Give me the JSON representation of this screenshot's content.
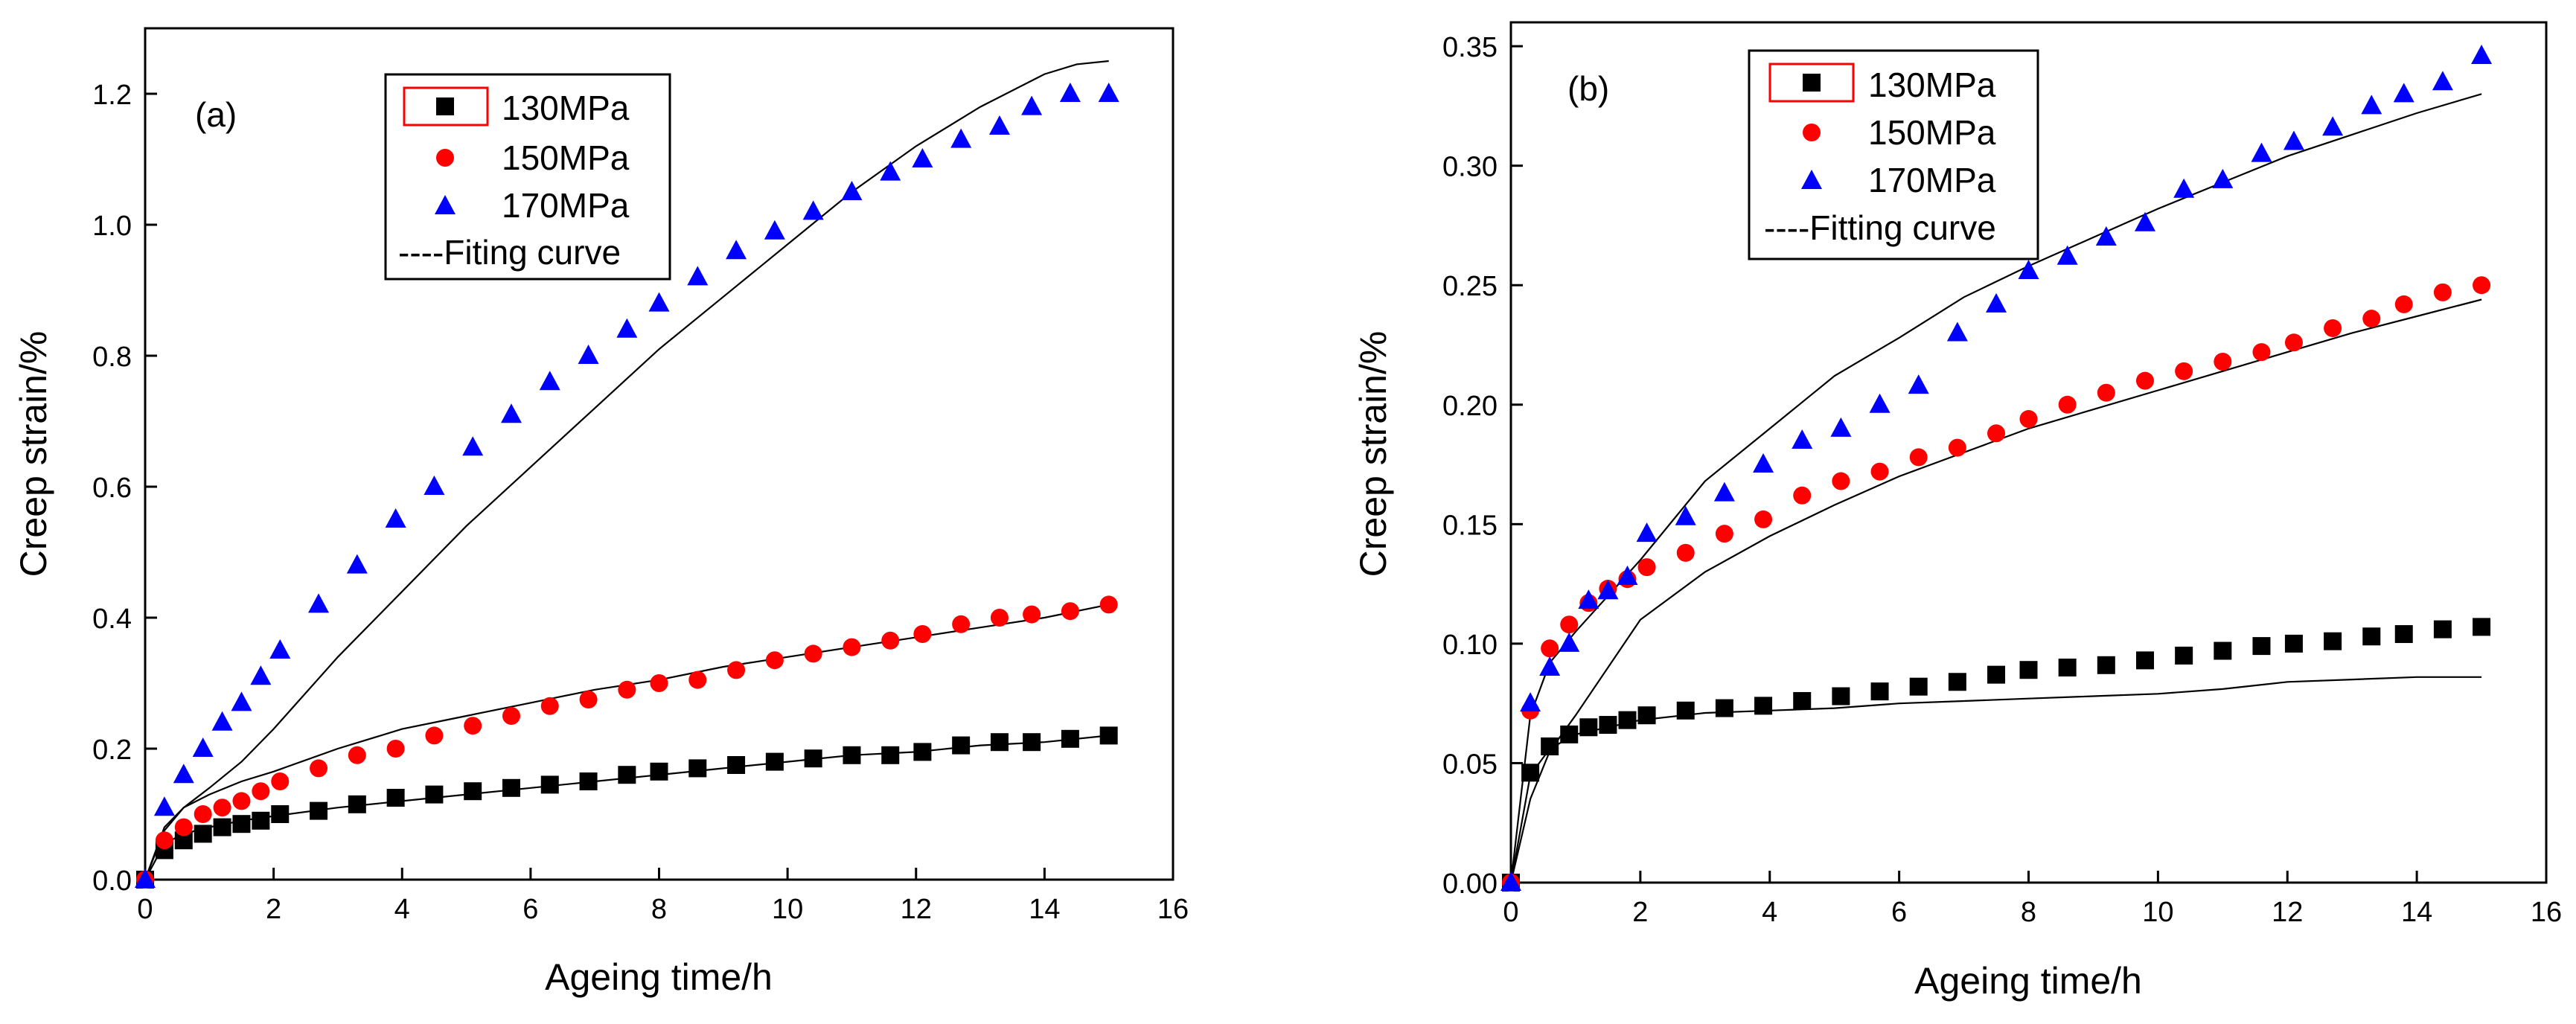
{
  "chart_data": [
    {
      "type": "scatter",
      "panel_label": "(a)",
      "xlabel": "Ageing time/h",
      "ylabel": "Creep strain/%",
      "xlim": [
        0,
        16
      ],
      "ylim": [
        0,
        1.3
      ],
      "xticks": [
        0,
        2,
        4,
        6,
        8,
        10,
        12,
        14,
        16
      ],
      "yticks": [
        0.0,
        0.2,
        0.4,
        0.6,
        0.8,
        1.0,
        1.2
      ],
      "xtick_labels": [
        "0",
        "2",
        "4",
        "6",
        "8",
        "10",
        "12",
        "14",
        "16"
      ],
      "ytick_labels": [
        "0.0",
        "0.2",
        "0.4",
        "0.6",
        "0.8",
        "1.0",
        "1.2"
      ],
      "legend_position": "top-center",
      "series": [
        {
          "name": "130MPa",
          "marker": "square",
          "color": "#000000",
          "x": [
            0,
            0.3,
            0.6,
            0.9,
            1.2,
            1.5,
            1.8,
            2.1,
            2.7,
            3.3,
            3.9,
            4.5,
            5.1,
            5.7,
            6.3,
            6.9,
            7.5,
            8.0,
            8.6,
            9.2,
            9.8,
            10.4,
            11.0,
            11.6,
            12.1,
            12.7,
            13.3,
            13.8,
            14.4,
            15.0
          ],
          "y": [
            0,
            0.045,
            0.06,
            0.07,
            0.08,
            0.085,
            0.09,
            0.1,
            0.105,
            0.115,
            0.125,
            0.13,
            0.135,
            0.14,
            0.145,
            0.15,
            0.16,
            0.165,
            0.17,
            0.175,
            0.18,
            0.185,
            0.19,
            0.19,
            0.195,
            0.205,
            0.21,
            0.21,
            0.215,
            0.22
          ]
        },
        {
          "name": "150MPa",
          "marker": "circle",
          "color": "#ff0000",
          "x": [
            0,
            0.3,
            0.6,
            0.9,
            1.2,
            1.5,
            1.8,
            2.1,
            2.7,
            3.3,
            3.9,
            4.5,
            5.1,
            5.7,
            6.3,
            6.9,
            7.5,
            8.0,
            8.6,
            9.2,
            9.8,
            10.4,
            11.0,
            11.6,
            12.1,
            12.7,
            13.3,
            13.8,
            14.4,
            15.0
          ],
          "y": [
            0,
            0.06,
            0.08,
            0.1,
            0.11,
            0.12,
            0.135,
            0.15,
            0.17,
            0.19,
            0.2,
            0.22,
            0.235,
            0.25,
            0.265,
            0.275,
            0.29,
            0.3,
            0.305,
            0.32,
            0.335,
            0.345,
            0.355,
            0.365,
            0.375,
            0.39,
            0.4,
            0.405,
            0.41,
            0.42
          ]
        },
        {
          "name": "170MPa",
          "marker": "triangle",
          "color": "#0000ff",
          "x": [
            0,
            0.3,
            0.6,
            0.9,
            1.2,
            1.5,
            1.8,
            2.1,
            2.7,
            3.3,
            3.9,
            4.5,
            5.1,
            5.7,
            6.3,
            6.9,
            7.5,
            8.0,
            8.6,
            9.2,
            9.8,
            10.4,
            11.0,
            11.6,
            12.1,
            12.7,
            13.3,
            13.8,
            14.4,
            15.0
          ],
          "y": [
            0,
            0.11,
            0.16,
            0.2,
            0.24,
            0.27,
            0.31,
            0.35,
            0.42,
            0.48,
            0.55,
            0.6,
            0.66,
            0.71,
            0.76,
            0.8,
            0.84,
            0.88,
            0.92,
            0.96,
            0.99,
            1.02,
            1.05,
            1.08,
            1.1,
            1.13,
            1.15,
            1.18,
            1.2,
            1.2
          ]
        },
        {
          "name": "----Fiting curve",
          "marker": "line",
          "color": "#000000",
          "curves": [
            {
              "x": [
                0,
                0.3,
                0.6,
                1,
                1.5,
                2,
                3,
                4,
                5,
                6,
                7,
                8,
                9,
                10,
                11,
                12,
                13,
                14,
                15
              ],
              "y": [
                0,
                0.055,
                0.07,
                0.08,
                0.09,
                0.097,
                0.11,
                0.12,
                0.13,
                0.14,
                0.15,
                0.16,
                0.17,
                0.18,
                0.19,
                0.195,
                0.205,
                0.21,
                0.22
              ]
            },
            {
              "x": [
                0,
                0.3,
                0.6,
                1,
                1.5,
                2,
                3,
                4,
                5,
                6,
                7,
                8,
                9,
                10,
                11,
                12,
                13,
                14,
                15
              ],
              "y": [
                0,
                0.075,
                0.11,
                0.13,
                0.15,
                0.165,
                0.2,
                0.23,
                0.25,
                0.27,
                0.29,
                0.305,
                0.325,
                0.34,
                0.355,
                0.37,
                0.385,
                0.4,
                0.42
              ]
            },
            {
              "x": [
                0,
                0.3,
                0.6,
                1,
                1.5,
                2,
                3,
                4,
                5,
                6,
                7,
                8,
                9,
                10,
                11,
                12,
                13,
                14,
                14.5,
                15
              ],
              "y": [
                0,
                0.08,
                0.11,
                0.14,
                0.18,
                0.23,
                0.34,
                0.44,
                0.54,
                0.63,
                0.72,
                0.81,
                0.89,
                0.97,
                1.05,
                1.12,
                1.18,
                1.23,
                1.245,
                1.25
              ]
            }
          ]
        }
      ]
    },
    {
      "type": "scatter",
      "panel_label": "(b)",
      "xlabel": "Ageing time/h",
      "ylabel": "Creep strain/%",
      "xlim": [
        0,
        16
      ],
      "ylim": [
        0,
        0.36
      ],
      "xticks": [
        0,
        2,
        4,
        6,
        8,
        10,
        12,
        14,
        16
      ],
      "yticks": [
        0.0,
        0.05,
        0.1,
        0.15,
        0.2,
        0.25,
        0.3,
        0.35
      ],
      "xtick_labels": [
        "0",
        "2",
        "4",
        "6",
        "8",
        "10",
        "12",
        "14",
        "16"
      ],
      "ytick_labels": [
        "0.00",
        "0.05",
        "0.10",
        "0.15",
        "0.20",
        "0.25",
        "0.30",
        "0.35"
      ],
      "legend_position": "top-left",
      "series": [
        {
          "name": "130MPa",
          "marker": "square",
          "color": "#000000",
          "x": [
            0,
            0.3,
            0.6,
            0.9,
            1.2,
            1.5,
            1.8,
            2.1,
            2.7,
            3.3,
            3.9,
            4.5,
            5.1,
            5.7,
            6.3,
            6.9,
            7.5,
            8.0,
            8.6,
            9.2,
            9.8,
            10.4,
            11.0,
            11.6,
            12.1,
            12.7,
            13.3,
            13.8,
            14.4,
            15.0
          ],
          "y": [
            0,
            0.046,
            0.057,
            0.062,
            0.065,
            0.066,
            0.068,
            0.07,
            0.072,
            0.073,
            0.074,
            0.076,
            0.078,
            0.08,
            0.082,
            0.084,
            0.087,
            0.089,
            0.09,
            0.091,
            0.093,
            0.095,
            0.097,
            0.099,
            0.1,
            0.101,
            0.103,
            0.104,
            0.106,
            0.107
          ]
        },
        {
          "name": "150MPa",
          "marker": "circle",
          "color": "#ff0000",
          "x": [
            0,
            0.3,
            0.6,
            0.9,
            1.2,
            1.5,
            1.8,
            2.1,
            2.7,
            3.3,
            3.9,
            4.5,
            5.1,
            5.7,
            6.3,
            6.9,
            7.5,
            8.0,
            8.6,
            9.2,
            9.8,
            10.4,
            11.0,
            11.6,
            12.1,
            12.7,
            13.3,
            13.8,
            14.4,
            15.0
          ],
          "y": [
            0,
            0.072,
            0.098,
            0.108,
            0.117,
            0.123,
            0.127,
            0.132,
            0.138,
            0.146,
            0.152,
            0.162,
            0.168,
            0.172,
            0.178,
            0.182,
            0.188,
            0.194,
            0.2,
            0.205,
            0.21,
            0.214,
            0.218,
            0.222,
            0.226,
            0.232,
            0.236,
            0.242,
            0.247,
            0.25
          ]
        },
        {
          "name": "170MPa",
          "marker": "triangle",
          "color": "#0000ff",
          "x": [
            0,
            0.3,
            0.6,
            0.9,
            1.2,
            1.5,
            1.8,
            2.1,
            2.7,
            3.3,
            3.9,
            4.5,
            5.1,
            5.7,
            6.3,
            6.9,
            7.5,
            8.0,
            8.6,
            9.2,
            9.8,
            10.4,
            11.0,
            11.6,
            12.1,
            12.7,
            13.3,
            13.8,
            14.4,
            15.0
          ],
          "y": [
            0,
            0.075,
            0.09,
            0.1,
            0.118,
            0.122,
            0.128,
            0.146,
            0.153,
            0.163,
            0.175,
            0.185,
            0.19,
            0.2,
            0.208,
            0.23,
            0.242,
            0.256,
            0.262,
            0.27,
            0.276,
            0.29,
            0.294,
            0.305,
            0.31,
            0.316,
            0.325,
            0.33,
            0.335,
            0.346
          ]
        },
        {
          "name": "----Fitting curve",
          "marker": "line",
          "color": "#000000",
          "curves": [
            {
              "x": [
                0,
                0.3,
                0.6,
                1,
                1.5,
                2,
                3,
                4,
                5,
                6,
                7,
                8,
                9,
                10,
                11,
                12,
                13,
                14,
                15
              ],
              "y": [
                0,
                0.045,
                0.056,
                0.062,
                0.065,
                0.068,
                0.071,
                0.072,
                0.073,
                0.075,
                0.076,
                0.077,
                0.078,
                0.079,
                0.081,
                0.084,
                0.085,
                0.086,
                0.086
              ]
            },
            {
              "x": [
                0,
                0.3,
                0.6,
                1,
                1.5,
                2,
                3,
                4,
                5,
                6,
                7,
                8,
                9,
                10,
                11,
                12,
                13,
                14,
                15
              ],
              "y": [
                0,
                0.035,
                0.055,
                0.07,
                0.09,
                0.11,
                0.13,
                0.145,
                0.158,
                0.17,
                0.18,
                0.19,
                0.198,
                0.206,
                0.214,
                0.222,
                0.23,
                0.237,
                0.244
              ]
            },
            {
              "x": [
                0,
                0.3,
                0.6,
                1,
                1.5,
                2,
                3,
                4,
                5,
                6,
                7,
                8,
                9,
                10,
                11,
                12,
                13,
                14,
                15
              ],
              "y": [
                0,
                0.07,
                0.092,
                0.105,
                0.12,
                0.135,
                0.168,
                0.19,
                0.212,
                0.228,
                0.245,
                0.258,
                0.27,
                0.282,
                0.293,
                0.304,
                0.313,
                0.322,
                0.33
              ]
            }
          ]
        }
      ]
    }
  ]
}
